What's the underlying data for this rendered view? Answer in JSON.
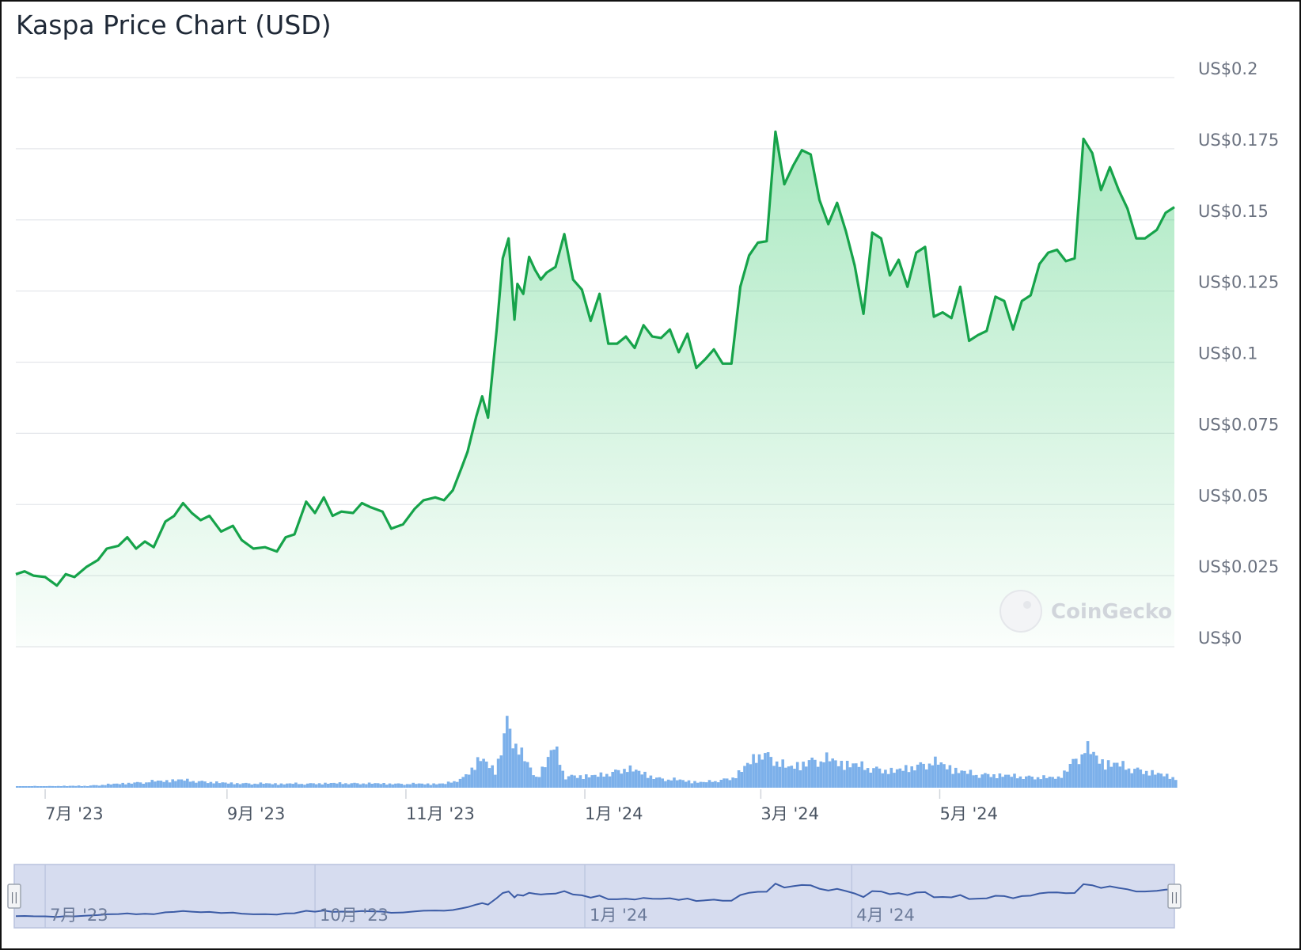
{
  "title": "Kaspa Price Chart (USD)",
  "watermark": "CoinGecko",
  "colors": {
    "price_line": "#16a34a",
    "price_fill": "#22c55e",
    "volume_bar": "#7cb0ea",
    "navigator_bg": "#d6dcef",
    "navigator_line": "#3b5ba5",
    "grid": "#e5e7eb"
  },
  "chart_data": {
    "type": "area",
    "title": "Kaspa Price Chart (USD)",
    "xlabel": "",
    "ylabel": "",
    "ylim": [
      0,
      0.2
    ],
    "y_ticks": [
      0,
      0.025,
      0.05,
      0.075,
      0.1,
      0.125,
      0.15,
      0.175,
      0.2
    ],
    "y_tick_labels": [
      "US$0",
      "US$0.025",
      "US$0.05",
      "US$0.075",
      "US$0.1",
      "US$0.125",
      "US$0.15",
      "US$0.175",
      "US$0.2"
    ],
    "x_tick_labels": [
      "7月 '23",
      "9月 '23",
      "11月 '23",
      "1月 '24",
      "3月 '24",
      "5月 '24"
    ],
    "x_tick_dates": [
      "2023-07-01",
      "2023-09-01",
      "2023-11-01",
      "2024-01-01",
      "2024-03-01",
      "2024-05-01"
    ],
    "xlim": [
      "2023-06-21",
      "2024-07-20"
    ],
    "grid": true,
    "series": [
      {
        "values": [
          [
            "2023-06-21",
            0.0255
          ],
          [
            "2023-06-24",
            0.0265
          ],
          [
            "2023-06-27",
            0.025
          ],
          [
            "2023-07-01",
            0.0245
          ],
          [
            "2023-07-05",
            0.0215
          ],
          [
            "2023-07-08",
            0.0255
          ],
          [
            "2023-07-11",
            0.0245
          ],
          [
            "2023-07-15",
            0.028
          ],
          [
            "2023-07-19",
            0.0305
          ],
          [
            "2023-07-22",
            0.0345
          ],
          [
            "2023-07-26",
            0.0355
          ],
          [
            "2023-07-29",
            0.0385
          ],
          [
            "2023-08-01",
            0.0345
          ],
          [
            "2023-08-04",
            0.037
          ],
          [
            "2023-08-07",
            0.035
          ],
          [
            "2023-08-11",
            0.044
          ],
          [
            "2023-08-14",
            0.046
          ],
          [
            "2023-08-17",
            0.0505
          ],
          [
            "2023-08-20",
            0.047
          ],
          [
            "2023-08-23",
            0.0445
          ],
          [
            "2023-08-26",
            0.046
          ],
          [
            "2023-08-30",
            0.0405
          ],
          [
            "2023-09-03",
            0.0425
          ],
          [
            "2023-09-06",
            0.0375
          ],
          [
            "2023-09-10",
            0.0345
          ],
          [
            "2023-09-14",
            0.035
          ],
          [
            "2023-09-18",
            0.0335
          ],
          [
            "2023-09-21",
            0.0385
          ],
          [
            "2023-09-24",
            0.0395
          ],
          [
            "2023-09-28",
            0.051
          ],
          [
            "2023-10-01",
            0.047
          ],
          [
            "2023-10-04",
            0.0525
          ],
          [
            "2023-10-07",
            0.046
          ],
          [
            "2023-10-10",
            0.0475
          ],
          [
            "2023-10-14",
            0.047
          ],
          [
            "2023-10-17",
            0.0505
          ],
          [
            "2023-10-20",
            0.049
          ],
          [
            "2023-10-24",
            0.0475
          ],
          [
            "2023-10-27",
            0.0415
          ],
          [
            "2023-10-31",
            0.043
          ],
          [
            "2023-11-04",
            0.0485
          ],
          [
            "2023-11-07",
            0.0515
          ],
          [
            "2023-11-11",
            0.0525
          ],
          [
            "2023-11-14",
            0.0515
          ],
          [
            "2023-11-17",
            0.055
          ],
          [
            "2023-11-20",
            0.063
          ],
          [
            "2023-11-22",
            0.0685
          ],
          [
            "2023-11-25",
            0.081
          ],
          [
            "2023-11-27",
            0.088
          ],
          [
            "2023-11-29",
            0.0805
          ],
          [
            "2023-12-02",
            0.112
          ],
          [
            "2023-12-04",
            0.1365
          ],
          [
            "2023-12-06",
            0.1435
          ],
          [
            "2023-12-08",
            0.115
          ],
          [
            "2023-12-09",
            0.1275
          ],
          [
            "2023-12-11",
            0.124
          ],
          [
            "2023-12-13",
            0.137
          ],
          [
            "2023-12-15",
            0.1325
          ],
          [
            "2023-12-17",
            0.129
          ],
          [
            "2023-12-19",
            0.1315
          ],
          [
            "2023-12-22",
            0.1335
          ],
          [
            "2023-12-25",
            0.145
          ],
          [
            "2023-12-28",
            0.129
          ],
          [
            "2023-12-31",
            0.1255
          ],
          [
            "2024-01-03",
            0.1145
          ],
          [
            "2024-01-06",
            0.124
          ],
          [
            "2024-01-09",
            0.1065
          ],
          [
            "2024-01-12",
            0.1065
          ],
          [
            "2024-01-15",
            0.109
          ],
          [
            "2024-01-18",
            0.105
          ],
          [
            "2024-01-21",
            0.113
          ],
          [
            "2024-01-24",
            0.109
          ],
          [
            "2024-01-27",
            0.1085
          ],
          [
            "2024-01-30",
            0.1115
          ],
          [
            "2024-02-02",
            0.1035
          ],
          [
            "2024-02-05",
            0.11
          ],
          [
            "2024-02-08",
            0.098
          ],
          [
            "2024-02-11",
            0.101
          ],
          [
            "2024-02-14",
            0.1045
          ],
          [
            "2024-02-17",
            0.0995
          ],
          [
            "2024-02-20",
            0.0995
          ],
          [
            "2024-02-23",
            0.1265
          ],
          [
            "2024-02-26",
            0.1375
          ],
          [
            "2024-02-29",
            0.142
          ],
          [
            "2024-03-03",
            0.1425
          ],
          [
            "2024-03-06",
            0.181
          ],
          [
            "2024-03-09",
            0.1625
          ],
          [
            "2024-03-12",
            0.169
          ],
          [
            "2024-03-15",
            0.1745
          ],
          [
            "2024-03-18",
            0.173
          ],
          [
            "2024-03-21",
            0.157
          ],
          [
            "2024-03-24",
            0.1485
          ],
          [
            "2024-03-27",
            0.156
          ],
          [
            "2024-03-30",
            0.146
          ],
          [
            "2024-04-02",
            0.134
          ],
          [
            "2024-04-05",
            0.117
          ],
          [
            "2024-04-08",
            0.1455
          ],
          [
            "2024-04-11",
            0.1435
          ],
          [
            "2024-04-14",
            0.1305
          ],
          [
            "2024-04-17",
            0.136
          ],
          [
            "2024-04-20",
            0.1265
          ],
          [
            "2024-04-23",
            0.1385
          ],
          [
            "2024-04-26",
            0.1405
          ],
          [
            "2024-04-29",
            0.116
          ],
          [
            "2024-05-02",
            0.1175
          ],
          [
            "2024-05-05",
            0.1155
          ],
          [
            "2024-05-08",
            0.1265
          ],
          [
            "2024-05-11",
            0.1075
          ],
          [
            "2024-05-14",
            0.1095
          ],
          [
            "2024-05-17",
            0.111
          ],
          [
            "2024-05-20",
            0.123
          ],
          [
            "2024-05-23",
            0.1215
          ],
          [
            "2024-05-26",
            0.1115
          ],
          [
            "2024-05-29",
            0.1215
          ],
          [
            "2024-06-01",
            0.1235
          ],
          [
            "2024-06-04",
            0.1345
          ],
          [
            "2024-06-07",
            0.1385
          ],
          [
            "2024-06-10",
            0.1395
          ],
          [
            "2024-06-13",
            0.1355
          ],
          [
            "2024-06-16",
            0.1365
          ],
          [
            "2024-06-19",
            0.1785
          ],
          [
            "2024-06-22",
            0.1735
          ],
          [
            "2024-06-25",
            0.1605
          ],
          [
            "2024-06-28",
            0.1685
          ],
          [
            "2024-07-01",
            0.1605
          ],
          [
            "2024-07-04",
            0.154
          ],
          [
            "2024-07-07",
            0.1435
          ],
          [
            "2024-07-10",
            0.1435
          ],
          [
            "2024-07-14",
            0.1465
          ],
          [
            "2024-07-17",
            0.1525
          ],
          [
            "2024-07-20",
            0.1545
          ]
        ]
      }
    ]
  },
  "volume_data": [
    [
      "2023-06-21",
      0.02
    ],
    [
      "2023-07-15",
      0.03
    ],
    [
      "2023-08-01",
      0.08
    ],
    [
      "2023-08-15",
      0.12
    ],
    [
      "2023-09-01",
      0.07
    ],
    [
      "2023-09-20",
      0.06
    ],
    [
      "2023-10-10",
      0.07
    ],
    [
      "2023-10-30",
      0.06
    ],
    [
      "2023-11-14",
      0.06
    ],
    [
      "2023-11-20",
      0.15
    ],
    [
      "2023-11-26",
      0.45
    ],
    [
      "2023-12-01",
      0.25
    ],
    [
      "2023-12-05",
      1.0
    ],
    [
      "2023-12-10",
      0.5
    ],
    [
      "2023-12-15",
      0.15
    ],
    [
      "2023-12-21",
      0.6
    ],
    [
      "2023-12-25",
      0.18
    ],
    [
      "2024-01-05",
      0.18
    ],
    [
      "2024-01-15",
      0.3
    ],
    [
      "2024-01-25",
      0.15
    ],
    [
      "2024-02-10",
      0.08
    ],
    [
      "2024-02-20",
      0.15
    ],
    [
      "2024-03-01",
      0.55
    ],
    [
      "2024-03-10",
      0.3
    ],
    [
      "2024-03-20",
      0.45
    ],
    [
      "2024-04-01",
      0.35
    ],
    [
      "2024-04-15",
      0.25
    ],
    [
      "2024-04-28",
      0.4
    ],
    [
      "2024-05-10",
      0.22
    ],
    [
      "2024-05-25",
      0.18
    ],
    [
      "2024-06-10",
      0.15
    ],
    [
      "2024-06-19",
      0.6
    ],
    [
      "2024-06-25",
      0.4
    ],
    [
      "2024-07-05",
      0.3
    ],
    [
      "2024-07-20",
      0.15
    ]
  ],
  "navigator": {
    "tick_labels": [
      "7月 '23",
      "10月 '23",
      "1月 '24",
      "4月 '24"
    ],
    "tick_dates": [
      "2023-07-01",
      "2023-10-01",
      "2024-01-01",
      "2024-04-01"
    ],
    "handle_left_glyph": "||",
    "handle_right_glyph": "||"
  }
}
